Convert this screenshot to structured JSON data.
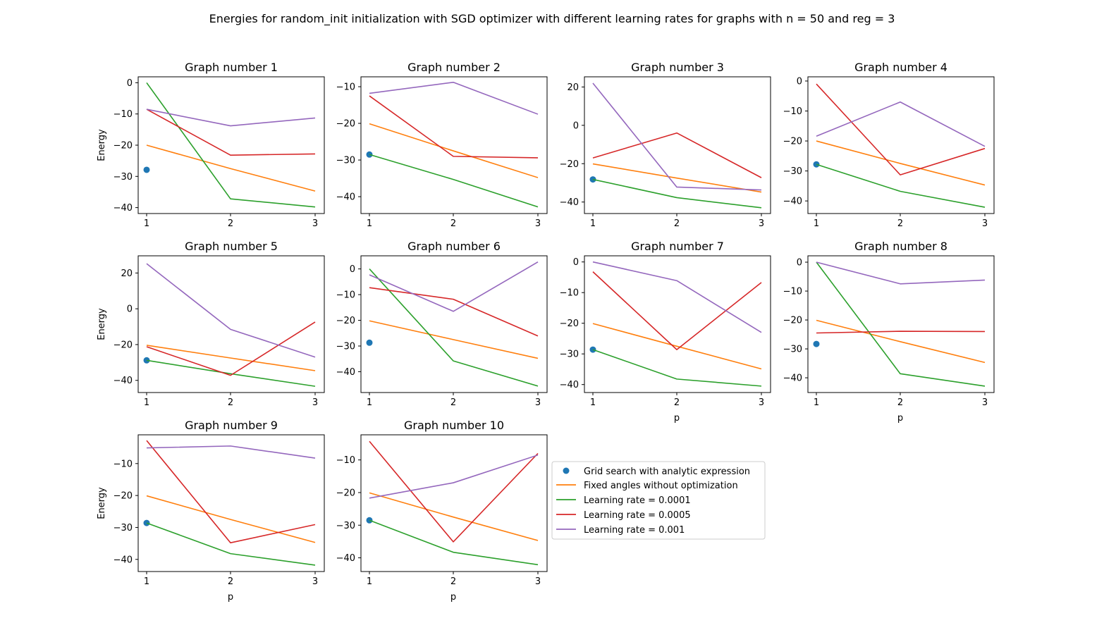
{
  "figure": {
    "suptitle": "Energies for random_init initialization with SGD optimizer with different learning rates for graphs with n = 50 and reg = 3"
  },
  "legend": {
    "items": [
      {
        "label": "Grid search with analytic expression",
        "color": "#1f77b4",
        "marker": "point"
      },
      {
        "label": "Fixed angles without optimization",
        "color": "#ff7f0e",
        "marker": "line"
      },
      {
        "label": "Learning rate = 0.0001",
        "color": "#2ca02c",
        "marker": "line"
      },
      {
        "label": "Learning rate = 0.0005",
        "color": "#d62728",
        "marker": "line"
      },
      {
        "label": "Learning rate = 0.001",
        "color": "#9467bd",
        "marker": "line"
      }
    ]
  },
  "chart_data": [
    {
      "type": "line",
      "title": "Graph number 1",
      "xlabel": "",
      "ylabel": "Energy",
      "x": [
        1,
        2,
        3
      ],
      "ylim": [
        -41.9,
        1.9
      ],
      "yticks": [
        0,
        -10,
        -20,
        -30,
        -40
      ],
      "series": [
        {
          "name": "Grid search with analytic expression",
          "kind": "point",
          "color": "#1f77b4",
          "x": [
            1
          ],
          "values": [
            -27.9
          ]
        },
        {
          "name": "Fixed angles without optimization",
          "color": "#ff7f0e",
          "values": [
            -20,
            -27.5,
            -34.7
          ]
        },
        {
          "name": "Learning rate = 0.0001",
          "color": "#2ca02c",
          "values": [
            0,
            -37.2,
            -39.8
          ]
        },
        {
          "name": "Learning rate = 0.0005",
          "color": "#d62728",
          "values": [
            -8.5,
            -23.2,
            -22.8
          ]
        },
        {
          "name": "Learning rate = 0.001",
          "color": "#9467bd",
          "values": [
            -8.5,
            -13.8,
            -11.3
          ]
        }
      ]
    },
    {
      "type": "line",
      "title": "Graph number 2",
      "xlabel": "",
      "ylabel": "",
      "x": [
        1,
        2,
        3
      ],
      "ylim": [
        -44.6,
        -7.3
      ],
      "yticks": [
        -10,
        -20,
        -30,
        -40
      ],
      "series": [
        {
          "name": "Grid search with analytic expression",
          "kind": "point",
          "color": "#1f77b4",
          "x": [
            1
          ],
          "values": [
            -28.5
          ]
        },
        {
          "name": "Fixed angles without optimization",
          "color": "#ff7f0e",
          "values": [
            -20.1,
            -27.5,
            -34.8
          ]
        },
        {
          "name": "Learning rate = 0.0001",
          "color": "#2ca02c",
          "values": [
            -28.5,
            -35.3,
            -42.8
          ]
        },
        {
          "name": "Learning rate = 0.0005",
          "color": "#d62728",
          "values": [
            -12.5,
            -29.0,
            -29.4
          ]
        },
        {
          "name": "Learning rate = 0.001",
          "color": "#9467bd",
          "values": [
            -11.8,
            -8.8,
            -17.5
          ]
        }
      ]
    },
    {
      "type": "line",
      "title": "Graph number 3",
      "xlabel": "",
      "ylabel": "",
      "x": [
        1,
        2,
        3
      ],
      "ylim": [
        -46.0,
        25.3
      ],
      "yticks": [
        20,
        0,
        -20,
        -40
      ],
      "series": [
        {
          "name": "Grid search with analytic expression",
          "kind": "point",
          "color": "#1f77b4",
          "x": [
            1
          ],
          "values": [
            -28.2
          ]
        },
        {
          "name": "Fixed angles without optimization",
          "color": "#ff7f0e",
          "values": [
            -20.1,
            -27.5,
            -34.8
          ]
        },
        {
          "name": "Learning rate = 0.0001",
          "color": "#2ca02c",
          "values": [
            -28.2,
            -37.7,
            -43.0
          ]
        },
        {
          "name": "Learning rate = 0.0005",
          "color": "#d62728",
          "values": [
            -17.0,
            -4.0,
            -27.3
          ]
        },
        {
          "name": "Learning rate = 0.001",
          "color": "#9467bd",
          "values": [
            22.0,
            -32.2,
            -33.7
          ]
        }
      ]
    },
    {
      "type": "line",
      "title": "Graph number 4",
      "xlabel": "",
      "ylabel": "",
      "x": [
        1,
        2,
        3
      ],
      "ylim": [
        -44.2,
        1.4
      ],
      "yticks": [
        0,
        -10,
        -20,
        -30,
        -40
      ],
      "series": [
        {
          "name": "Grid search with analytic expression",
          "kind": "point",
          "color": "#1f77b4",
          "x": [
            1
          ],
          "values": [
            -27.8
          ]
        },
        {
          "name": "Fixed angles without optimization",
          "color": "#ff7f0e",
          "values": [
            -20.0,
            -27.5,
            -34.7
          ]
        },
        {
          "name": "Learning rate = 0.0001",
          "color": "#2ca02c",
          "values": [
            -27.8,
            -36.8,
            -42.1
          ]
        },
        {
          "name": "Learning rate = 0.0005",
          "color": "#d62728",
          "values": [
            -1.0,
            -31.3,
            -22.5
          ]
        },
        {
          "name": "Learning rate = 0.001",
          "color": "#9467bd",
          "values": [
            -18.4,
            -7.0,
            -21.8
          ]
        }
      ]
    },
    {
      "type": "line",
      "title": "Graph number 5",
      "xlabel": "",
      "ylabel": "Energy",
      "x": [
        1,
        2,
        3
      ],
      "ylim": [
        -46.8,
        29.6
      ],
      "yticks": [
        20,
        0,
        -20,
        -40
      ],
      "series": [
        {
          "name": "Grid search with analytic expression",
          "kind": "point",
          "color": "#1f77b4",
          "x": [
            1
          ],
          "values": [
            -28.8
          ]
        },
        {
          "name": "Fixed angles without optimization",
          "color": "#ff7f0e",
          "values": [
            -20.4,
            -27.5,
            -34.6
          ]
        },
        {
          "name": "Learning rate = 0.0001",
          "color": "#2ca02c",
          "values": [
            -28.8,
            -36.3,
            -43.3
          ]
        },
        {
          "name": "Learning rate = 0.0005",
          "color": "#d62728",
          "values": [
            -21.2,
            -37.2,
            -7.4
          ]
        },
        {
          "name": "Learning rate = 0.001",
          "color": "#9467bd",
          "values": [
            25.2,
            -11.5,
            -27.0
          ]
        }
      ]
    },
    {
      "type": "line",
      "title": "Graph number 6",
      "xlabel": "",
      "ylabel": "",
      "x": [
        1,
        2,
        3
      ],
      "ylim": [
        -48.1,
        5.1
      ],
      "yticks": [
        0,
        -10,
        -20,
        -30,
        -40
      ],
      "series": [
        {
          "name": "Grid search with analytic expression",
          "kind": "point",
          "color": "#1f77b4",
          "x": [
            1
          ],
          "values": [
            -28.7
          ]
        },
        {
          "name": "Fixed angles without optimization",
          "color": "#ff7f0e",
          "values": [
            -20.2,
            -27.5,
            -34.8
          ]
        },
        {
          "name": "Learning rate = 0.0001",
          "color": "#2ca02c",
          "values": [
            0,
            -35.8,
            -45.6
          ]
        },
        {
          "name": "Learning rate = 0.0005",
          "color": "#d62728",
          "values": [
            -7.3,
            -11.8,
            -26.1
          ]
        },
        {
          "name": "Learning rate = 0.001",
          "color": "#9467bd",
          "values": [
            -2.3,
            -16.5,
            2.7
          ]
        }
      ]
    },
    {
      "type": "line",
      "title": "Graph number 7",
      "xlabel": "p",
      "ylabel": "",
      "x": [
        1,
        2,
        3
      ],
      "ylim": [
        -42.6,
        2.0
      ],
      "yticks": [
        0,
        -10,
        -20,
        -30,
        -40
      ],
      "series": [
        {
          "name": "Grid search with analytic expression",
          "kind": "point",
          "color": "#1f77b4",
          "x": [
            1
          ],
          "values": [
            -28.6
          ]
        },
        {
          "name": "Fixed angles without optimization",
          "color": "#ff7f0e",
          "values": [
            -20.1,
            -27.5,
            -34.9
          ]
        },
        {
          "name": "Learning rate = 0.0001",
          "color": "#2ca02c",
          "values": [
            -28.6,
            -38.2,
            -40.5
          ]
        },
        {
          "name": "Learning rate = 0.0005",
          "color": "#d62728",
          "values": [
            -3.2,
            -28.6,
            -6.7
          ]
        },
        {
          "name": "Learning rate = 0.001",
          "color": "#9467bd",
          "values": [
            0,
            -6.1,
            -23.0
          ]
        }
      ]
    },
    {
      "type": "line",
      "title": "Graph number 8",
      "xlabel": "p",
      "ylabel": "",
      "x": [
        1,
        2,
        3
      ],
      "ylim": [
        -45.1,
        2.2
      ],
      "yticks": [
        0,
        -10,
        -20,
        -30,
        -40
      ],
      "series": [
        {
          "name": "Grid search with analytic expression",
          "kind": "point",
          "color": "#1f77b4",
          "x": [
            1
          ],
          "values": [
            -28.3
          ]
        },
        {
          "name": "Fixed angles without optimization",
          "color": "#ff7f0e",
          "values": [
            -20.1,
            -27.5,
            -34.7
          ]
        },
        {
          "name": "Learning rate = 0.0001",
          "color": "#2ca02c",
          "values": [
            0,
            -38.6,
            -42.9
          ]
        },
        {
          "name": "Learning rate = 0.0005",
          "color": "#d62728",
          "values": [
            -24.5,
            -23.9,
            -24.0
          ]
        },
        {
          "name": "Learning rate = 0.001",
          "color": "#9467bd",
          "values": [
            0,
            -7.5,
            -6.2
          ]
        }
      ]
    },
    {
      "type": "line",
      "title": "Graph number 9",
      "xlabel": "p",
      "ylabel": "Energy",
      "x": [
        1,
        2,
        3
      ],
      "ylim": [
        -43.8,
        -1.0
      ],
      "yticks": [
        -10,
        -20,
        -30,
        -40
      ],
      "series": [
        {
          "name": "Grid search with analytic expression",
          "kind": "point",
          "color": "#1f77b4",
          "x": [
            1
          ],
          "values": [
            -28.6
          ]
        },
        {
          "name": "Fixed angles without optimization",
          "color": "#ff7f0e",
          "values": [
            -20.1,
            -27.5,
            -34.7
          ]
        },
        {
          "name": "Learning rate = 0.0001",
          "color": "#2ca02c",
          "values": [
            -28.6,
            -38.2,
            -41.8
          ]
        },
        {
          "name": "Learning rate = 0.0005",
          "color": "#d62728",
          "values": [
            -2.8,
            -34.8,
            -29.1
          ]
        },
        {
          "name": "Learning rate = 0.001",
          "color": "#9467bd",
          "values": [
            -5.1,
            -4.5,
            -8.3
          ]
        }
      ]
    },
    {
      "type": "line",
      "title": "Graph number 10",
      "xlabel": "p",
      "ylabel": "",
      "x": [
        1,
        2,
        3
      ],
      "ylim": [
        -44.2,
        -2.3
      ],
      "yticks": [
        -10,
        -20,
        -30,
        -40
      ],
      "series": [
        {
          "name": "Grid search with analytic expression",
          "kind": "point",
          "color": "#1f77b4",
          "x": [
            1
          ],
          "values": [
            -28.5
          ]
        },
        {
          "name": "Fixed angles without optimization",
          "color": "#ff7f0e",
          "values": [
            -20.1,
            -27.5,
            -34.7
          ]
        },
        {
          "name": "Learning rate = 0.0001",
          "color": "#2ca02c",
          "values": [
            -28.5,
            -38.3,
            -42.1
          ]
        },
        {
          "name": "Learning rate = 0.0005",
          "color": "#d62728",
          "values": [
            -4.3,
            -35.1,
            -8.0
          ]
        },
        {
          "name": "Learning rate = 0.001",
          "color": "#9467bd",
          "values": [
            -21.7,
            -17.0,
            -8.5
          ]
        }
      ]
    }
  ]
}
